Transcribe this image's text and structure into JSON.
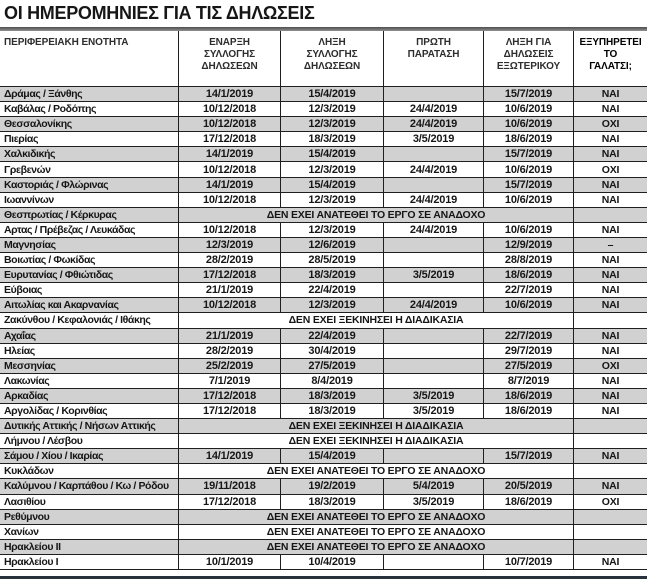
{
  "title": "ΟΙ ΗΜΕΡΟΜΗΝΙΕΣ ΓΙΑ ΤΙΣ ΔΗΛΩΣΕΙΣ",
  "colors": {
    "row_alt": "#d1d1d1",
    "rule_bar": "#6a6a6a",
    "bottom_line": "#28323c",
    "text": "#161616"
  },
  "chart_data": {
    "type": "table",
    "title": "ΟΙ ΗΜΕΡΟΜΗΝΙΕΣ ΓΙΑ ΤΙΣ ΔΗΛΩΣΕΙΣ",
    "columns": [
      "ΠΕΡΙΦΕΡΕΙΑΚΗ ΕΝΟΤΗΤΑ",
      "ΕΝΑΡΞΗ\nΣΥΛΛΟΓΗΣ\nΔΗΛΩΣΕΩΝ",
      "ΛΗΞΗ\nΣΥΛΛΟΓΗΣ\nΔΗΛΩΣΕΩΝ",
      "ΠΡΩΤΗ\nΠΑΡΑΤΑΣΗ",
      "ΛΗΞΗ ΓΙΑ\nΔΗΛΩΣΕΙΣ\nΕΞΩΤΕΡΙΚΟΥ",
      "ΕΞΥΠΗΡΕΤΕΙ\nΤΟ\nΓΑΛΑΤΣΙ;"
    ],
    "rows": [
      {
        "region": "Δράμας / Ξάνθης",
        "start": "14/1/2019",
        "end": "15/4/2019",
        "extension": "",
        "abroad": "15/7/2019",
        "galatsi": "ΝΑΙ"
      },
      {
        "region": "Καβάλας / Ροδόπης",
        "start": "10/12/2018",
        "end": "12/3/2019",
        "extension": "24/4/2019",
        "abroad": "10/6/2019",
        "galatsi": "ΝΑΙ"
      },
      {
        "region": "Θεσσαλονίκης",
        "start": "10/12/2018",
        "end": "12/3/2019",
        "extension": "24/4/2019",
        "abroad": "10/6/2019",
        "galatsi": "ΟΧΙ"
      },
      {
        "region": "Πιερίας",
        "start": "17/12/2018",
        "end": "18/3/2019",
        "extension": "3/5/2019",
        "abroad": "18/6/2019",
        "galatsi": "ΝΑΙ"
      },
      {
        "region": "Χαλκιδικής",
        "start": "14/1/2019",
        "end": "15/4/2019",
        "extension": "",
        "abroad": "15/7/2019",
        "galatsi": "ΝΑΙ"
      },
      {
        "region": "Γρεβενών",
        "start": "10/12/2018",
        "end": "12/3/2019",
        "extension": "24/4/2019",
        "abroad": "10/6/2019",
        "galatsi": "ΟΧΙ"
      },
      {
        "region": "Καστοριάς / Φλώρινας",
        "start": "14/1/2019",
        "end": "15/4/2019",
        "extension": "",
        "abroad": "15/7/2019",
        "galatsi": "ΝΑΙ"
      },
      {
        "region": "Ιωαννίνων",
        "start": "10/12/2018",
        "end": "12/3/2019",
        "extension": "24/4/2019",
        "abroad": "10/6/2019",
        "galatsi": "ΝΑΙ"
      },
      {
        "region": "Θεσπρωτίας / Κέρκυρας",
        "span": "ΔΕΝ ΕΧΕΙ ΑΝΑΤΕΘΕΙ ΤΟ ΕΡΓΟ ΣΕ ΑΝΑΔΟΧΟ",
        "galatsi": ""
      },
      {
        "region": "Αρτας / Πρέβεζας / Λευκάδας",
        "start": "10/12/2018",
        "end": "12/3/2019",
        "extension": "24/4/2019",
        "abroad": "10/6/2019",
        "galatsi": "ΝΑΙ"
      },
      {
        "region": "Μαγνησίας",
        "start": "12/3/2019",
        "end": "12/6/2019",
        "extension": "",
        "abroad": "12/9/2019",
        "galatsi": "–"
      },
      {
        "region": "Βοιωτίας / Φωκίδας",
        "start": "28/2/2019",
        "end": "28/5/2019",
        "extension": "",
        "abroad": "28/8/2019",
        "galatsi": "ΝΑΙ"
      },
      {
        "region": "Ευρυτανίας / Φθιώτιδας",
        "start": "17/12/2018",
        "end": "18/3/2019",
        "extension": "3/5/2019",
        "abroad": "18/6/2019",
        "galatsi": "ΝΑΙ"
      },
      {
        "region": "Εύβοιας",
        "start": "21/1/2019",
        "end": "22/4/2019",
        "extension": "",
        "abroad": "22/7/2019",
        "galatsi": "ΝΑΙ"
      },
      {
        "region": "Αιτωλίας και Ακαρνανίας",
        "start": "10/12/2018",
        "end": "12/3/2019",
        "extension": "24/4/2019",
        "abroad": "10/6/2019",
        "galatsi": "ΝΑΙ"
      },
      {
        "region": "Ζακύνθου / Κεφαλονιάς / Ιθάκης",
        "span": "ΔΕΝ ΕΧΕΙ ΞΕΚΙΝΗΣΕΙ Η ΔΙΑΔΙΚΑΣΙΑ",
        "galatsi": ""
      },
      {
        "region": "Αχαΐας",
        "start": "21/1/2019",
        "end": "22/4/2019",
        "extension": "",
        "abroad": "22/7/2019",
        "galatsi": "ΝΑΙ"
      },
      {
        "region": "Ηλείας",
        "start": "28/2/2019",
        "end": "30/4/2019",
        "extension": "",
        "abroad": "29/7/2019",
        "galatsi": "ΝΑΙ"
      },
      {
        "region": "Μεσσηνίας",
        "start": "25/2/2019",
        "end": "27/5/2019",
        "extension": "",
        "abroad": "27/5/2019",
        "galatsi": "ΟΧΙ"
      },
      {
        "region": "Λακωνίας",
        "start": "7/1/2019",
        "end": "8/4/2019",
        "extension": "",
        "abroad": "8/7/2019",
        "galatsi": "ΝΑΙ"
      },
      {
        "region": "Αρκαδίας",
        "start": "17/12/2018",
        "end": "18/3/2019",
        "extension": "3/5/2019",
        "abroad": "18/6/2019",
        "galatsi": "ΝΑΙ"
      },
      {
        "region": "Αργολίδας / Κορινθίας",
        "start": "17/12/2018",
        "end": "18/3/2019",
        "extension": "3/5/2019",
        "abroad": "18/6/2019",
        "galatsi": "ΝΑΙ"
      },
      {
        "region": "Δυτικής Αττικής / Νήσων Αττικής",
        "span": "ΔΕΝ ΕΧΕΙ ΞΕΚΙΝΗΣΕΙ Η ΔΙΑΔΙΚΑΣΙΑ",
        "galatsi": ""
      },
      {
        "region": "Λήμνου / Λέσβου",
        "span": "ΔΕΝ ΕΧΕΙ ΞΕΚΙΝΗΣΕΙ Η ΔΙΑΔΙΚΑΣΙΑ",
        "galatsi": ""
      },
      {
        "region": "Σάμου / Χίου / Ικαρίας",
        "start": "14/1/2019",
        "end": "15/4/2019",
        "extension": "",
        "abroad": "15/7/2019",
        "galatsi": "ΝΑΙ"
      },
      {
        "region": "Κυκλάδων",
        "span": "ΔΕΝ ΕΧΕΙ ΑΝΑΤΕΘΕΙ ΤΟ ΕΡΓΟ ΣΕ ΑΝΑΔΟΧΟ",
        "galatsi": ""
      },
      {
        "region": "Καλύμνου / Καρπάθου / Κω / Ρόδου",
        "start": "19/11/2018",
        "end": "19/2/2019",
        "extension": "5/4/2019",
        "abroad": "20/5/2019",
        "galatsi": "ΝΑΙ"
      },
      {
        "region": "Λασιθίου",
        "start": "17/12/2018",
        "end": "18/3/2019",
        "extension": "3/5/2019",
        "abroad": "18/6/2019",
        "galatsi": "ΟΧΙ"
      },
      {
        "region": "Ρεθύμνου",
        "span": "ΔΕΝ ΕΧΕΙ ΑΝΑΤΕΘΕΙ ΤΟ ΕΡΓΟ ΣΕ ΑΝΑΔΟΧΟ",
        "galatsi": ""
      },
      {
        "region": "Χανίων",
        "span": "ΔΕΝ ΕΧΕΙ ΑΝΑΤΕΘΕΙ ΤΟ ΕΡΓΟ ΣΕ ΑΝΑΔΟΧΟ",
        "galatsi": ""
      },
      {
        "region": "Ηρακλείου ΙΙ",
        "span": "ΔΕΝ ΕΧΕΙ ΑΝΑΤΕΘΕΙ ΤΟ ΕΡΓΟ ΣΕ ΑΝΑΔΟΧΟ",
        "galatsi": ""
      },
      {
        "region": "Ηρακλείου Ι",
        "start": "10/1/2019",
        "end": "10/4/2019",
        "extension": "",
        "abroad": "10/7/2019",
        "galatsi": "ΝΑΙ"
      }
    ]
  }
}
